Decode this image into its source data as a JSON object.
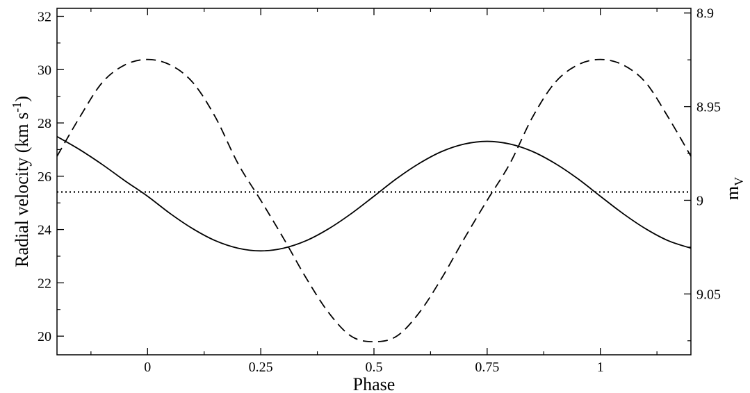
{
  "chart_data": {
    "type": "line",
    "xlabel": "Phase",
    "ylabel_left": {
      "main": "Radial velocity (km s",
      "sup": "-1",
      "tail": ")"
    },
    "ylabel_right": {
      "main": "m",
      "sub": "V"
    },
    "xlim": [
      -0.2,
      1.2
    ],
    "ylim_left": [
      19.3,
      32.3
    ],
    "ylim_right": [
      9.0825,
      8.8975
    ],
    "right_axis_inverted": true,
    "x_ticks": [
      0,
      0.25,
      0.5,
      0.75,
      1
    ],
    "x_tick_labels": [
      "0",
      "0.25",
      "0.5",
      "0.75",
      "1"
    ],
    "y_left_ticks": [
      20,
      22,
      24,
      26,
      28,
      30,
      32
    ],
    "y_left_tick_labels": [
      "20",
      "22",
      "24",
      "26",
      "28",
      "30",
      "32"
    ],
    "y_right_ticks": [
      8.9,
      8.95,
      9,
      9.05
    ],
    "y_right_tick_labels": [
      "8.9",
      "8.95",
      "9",
      "9.05"
    ],
    "grid": false,
    "series": [
      {
        "style": "solid",
        "axis": "left",
        "x": [
          -0.2,
          -0.15,
          -0.1,
          -0.05,
          0,
          0.05,
          0.1,
          0.15,
          0.2,
          0.25,
          0.3,
          0.35,
          0.4,
          0.45,
          0.5,
          0.55,
          0.6,
          0.65,
          0.7,
          0.75,
          0.8,
          0.85,
          0.9,
          0.95,
          1,
          1.05,
          1.1,
          1.15,
          1.2
        ],
        "y": [
          27.49,
          27.0,
          26.44,
          25.83,
          25.25,
          24.6,
          24.03,
          23.58,
          23.3,
          23.2,
          23.3,
          23.58,
          24.03,
          24.6,
          25.25,
          25.91,
          26.48,
          26.93,
          27.21,
          27.31,
          27.21,
          26.93,
          26.48,
          25.91,
          25.25,
          24.6,
          24.03,
          23.58,
          23.3
        ]
      },
      {
        "style": "dashed",
        "axis": "right",
        "x": [
          -0.2,
          -0.15,
          -0.1,
          -0.05,
          0,
          0.05,
          0.1,
          0.15,
          0.2,
          0.25,
          0.3,
          0.35,
          0.4,
          0.45,
          0.5,
          0.55,
          0.6,
          0.65,
          0.7,
          0.75,
          0.8,
          0.85,
          0.9,
          0.95,
          1,
          1.05,
          1.1,
          1.15,
          1.2
        ],
        "y": [
          8.9765,
          8.9557,
          8.9371,
          8.9277,
          8.9248,
          8.9277,
          8.9371,
          8.9557,
          8.9805,
          9.0,
          9.0202,
          9.0414,
          9.06,
          9.0726,
          9.0755,
          9.0726,
          9.06,
          9.0414,
          9.0202,
          9.0,
          8.9805,
          8.9557,
          8.9371,
          8.9277,
          8.9248,
          8.9277,
          8.9371,
          8.9557,
          8.9765
        ]
      },
      {
        "style": "dotted",
        "axis": "left",
        "x": [
          -0.2,
          1.2
        ],
        "y": [
          25.41,
          25.41
        ]
      }
    ]
  }
}
